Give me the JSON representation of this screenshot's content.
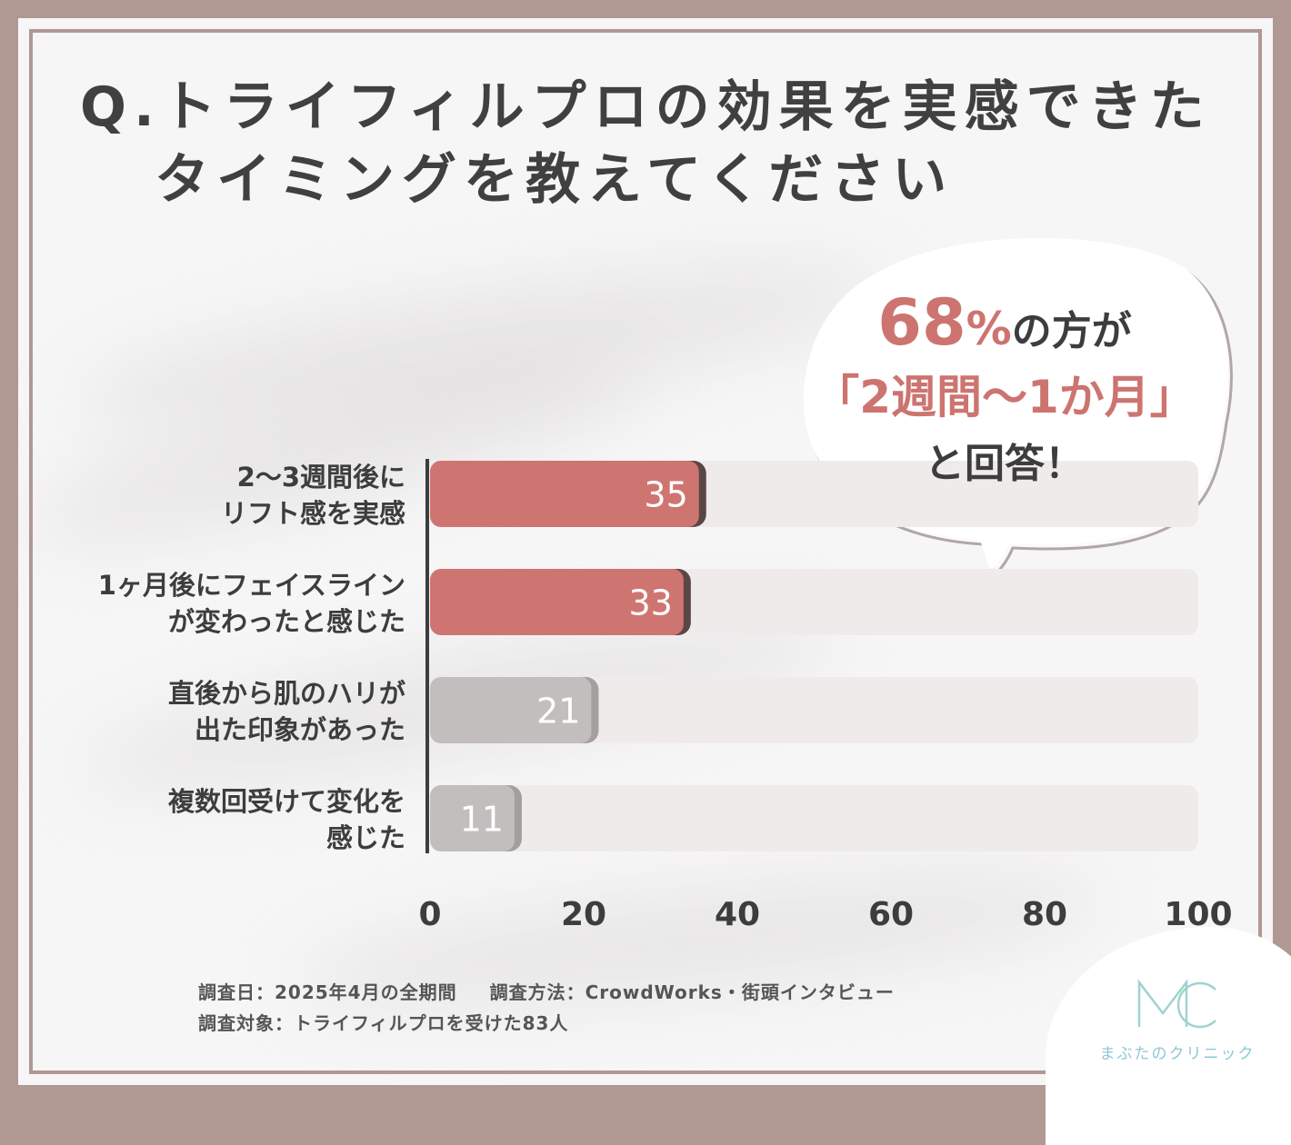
{
  "title": {
    "line1": "Q.トライフィルプロの効果を実感できた",
    "line2": "タイミングを教えてください"
  },
  "callout": {
    "highlight_value": "68",
    "highlight_unit": "%",
    "line1_rest": "の方が",
    "line2": "「2週間〜1か月」",
    "line3": "と回答！"
  },
  "chart_data": {
    "type": "bar",
    "orientation": "horizontal",
    "categories": [
      [
        "2〜3週間後に",
        "リフト感を実感"
      ],
      [
        "1ヶ月後にフェイスライン",
        "が変わったと感じた"
      ],
      [
        "直後から肌のハリが",
        "出た印象があった"
      ],
      [
        "複数回受けて変化を",
        "感じた"
      ]
    ],
    "values": [
      35,
      33,
      21,
      11
    ],
    "value_labels": [
      "35",
      "33",
      "21",
      "11"
    ],
    "xlim": [
      0,
      100
    ],
    "xticks": [
      0,
      20,
      40,
      60,
      80,
      100
    ],
    "xtick_labels": [
      "0",
      "20",
      "40",
      "60",
      "80",
      "100"
    ],
    "colors": {
      "highlight": "#cf7571",
      "highlight_edge": "#5a4745",
      "normal": "#c2bebd",
      "normal_edge": "#a39f9e",
      "track": "#efebea"
    },
    "highlighted": [
      true,
      true,
      false,
      false
    ],
    "grid": false
  },
  "footer": {
    "date": "調査日：2025年4月の全期間",
    "method": "調査方法：CrowdWorks・街頭インタビュー",
    "target": "調査対象：トライフィルプロを受けた83人"
  },
  "logo": {
    "mark": "MC",
    "name": "まぶたのクリニック",
    "color": "#8cc8d8"
  }
}
